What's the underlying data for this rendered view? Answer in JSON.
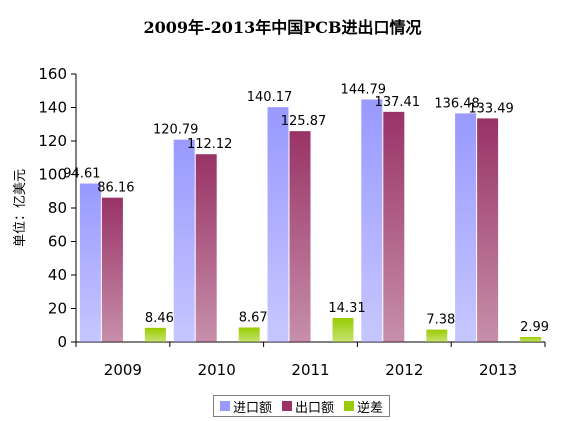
{
  "chart_data": {
    "type": "bar",
    "title": "2009年-2013年中国PCB进出口情况",
    "ylabel": "单位：亿美元",
    "xlabel": "",
    "categories": [
      "2009",
      "2010",
      "2011",
      "2012",
      "2013"
    ],
    "ylim": [
      0,
      160
    ],
    "yticks": [
      0,
      20,
      40,
      60,
      80,
      100,
      120,
      140,
      160
    ],
    "grid": false,
    "legend_position": "bottom",
    "series": [
      {
        "name": "进口额",
        "values": [
          94.61,
          120.79,
          140.17,
          144.79,
          136.48
        ],
        "labels": [
          "94.61",
          "120.79",
          "140.17",
          "144.79",
          "136.48"
        ],
        "color": "#9999ff"
      },
      {
        "name": "出口额",
        "values": [
          86.16,
          112.12,
          125.87,
          137.41,
          133.49
        ],
        "labels": [
          "86.16",
          "112.12",
          "125.87",
          "137.41",
          "133.49"
        ],
        "color": "#993366"
      },
      {
        "name": "逆差",
        "values": [
          8.46,
          8.67,
          14.31,
          7.38,
          2.99
        ],
        "labels": [
          "8.46",
          "8.67",
          "14.31",
          "7.38",
          "2.99"
        ],
        "color": "#99cc00"
      }
    ]
  }
}
